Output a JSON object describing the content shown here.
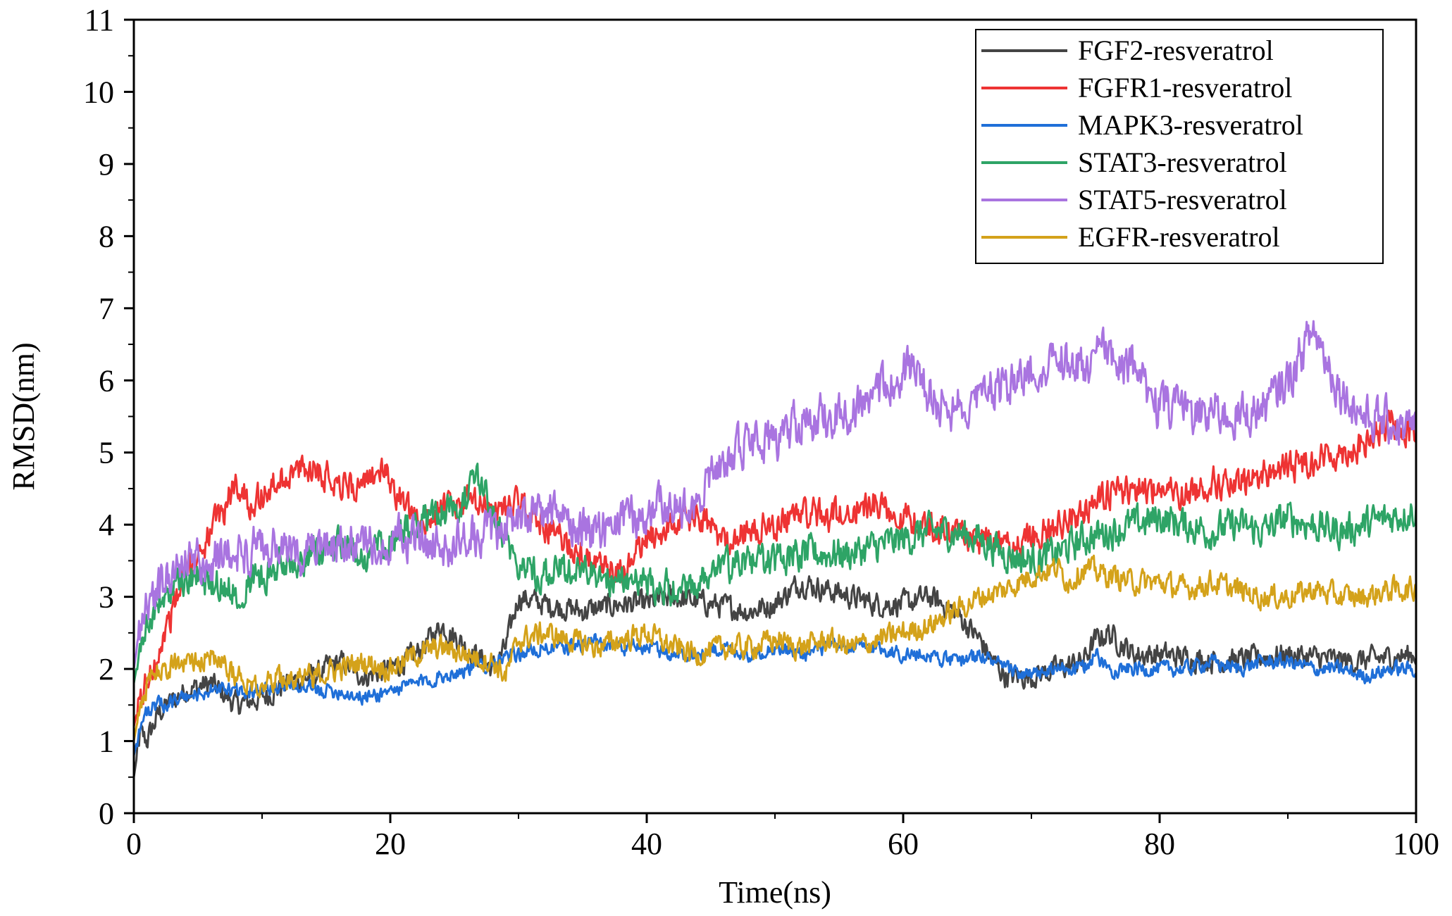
{
  "chart_data": {
    "type": "line",
    "title": "",
    "xlabel": "Time(ns)",
    "ylabel": "RMSD(nm)",
    "xlim": [
      0,
      100
    ],
    "ylim": [
      0,
      11
    ],
    "xticks": [
      0,
      20,
      40,
      60,
      80,
      100
    ],
    "yticks": [
      0,
      1,
      2,
      3,
      4,
      5,
      6,
      7,
      8,
      9,
      10,
      11
    ],
    "x_tick_labels": [
      "0",
      "20",
      "40",
      "60",
      "80",
      "100"
    ],
    "y_tick_labels": [
      "0",
      "1",
      "2",
      "3",
      "4",
      "5",
      "6",
      "7",
      "8",
      "9",
      "10",
      "11"
    ],
    "grid": false,
    "legend_position": "top-right",
    "series": [
      {
        "name": "FGF2-resveratrol",
        "color": "#444444",
        "x": [
          0,
          0.5,
          1,
          2,
          4,
          6,
          8,
          10,
          12,
          14,
          16,
          18,
          20,
          22,
          24,
          26,
          28,
          29,
          30,
          32,
          35,
          38,
          40,
          42,
          45,
          48,
          50,
          52,
          54,
          56,
          58,
          60,
          62,
          64,
          66,
          67,
          68,
          70,
          72,
          74,
          75,
          76,
          78,
          80,
          85,
          90,
          95,
          100
        ],
        "y": [
          0.5,
          1.1,
          1.0,
          1.4,
          1.7,
          1.8,
          1.5,
          1.6,
          1.8,
          1.9,
          2.1,
          1.9,
          2.0,
          2.2,
          2.6,
          2.3,
          2.0,
          2.3,
          3.0,
          2.9,
          2.8,
          2.9,
          2.9,
          3.0,
          2.9,
          2.8,
          2.9,
          3.2,
          3.1,
          3.0,
          2.9,
          2.9,
          3.0,
          2.8,
          2.4,
          2.1,
          1.9,
          1.9,
          2.0,
          2.1,
          2.4,
          2.5,
          2.2,
          2.2,
          2.1,
          2.2,
          2.1,
          2.2
        ]
      },
      {
        "name": "FGFR1-resveratrol",
        "color": "#ee3333",
        "x": [
          0,
          0.5,
          1,
          2,
          3,
          4,
          5,
          6,
          7,
          8,
          9,
          10,
          12,
          14,
          16,
          18,
          19,
          20,
          21,
          22,
          24,
          26,
          28,
          30,
          32,
          34,
          36,
          38,
          40,
          42,
          44,
          46,
          48,
          50,
          52,
          54,
          56,
          58,
          60,
          62,
          64,
          66,
          68,
          70,
          72,
          74,
          76,
          78,
          80,
          82,
          84,
          86,
          88,
          90,
          92,
          94,
          96,
          98,
          100
        ],
        "y": [
          1.2,
          1.6,
          1.8,
          2.3,
          2.8,
          3.3,
          3.6,
          3.9,
          4.2,
          4.6,
          4.3,
          4.4,
          4.7,
          4.8,
          4.6,
          4.5,
          4.8,
          4.6,
          4.3,
          4.0,
          4.2,
          4.3,
          4.2,
          4.3,
          4.0,
          3.7,
          3.4,
          3.3,
          3.8,
          4.0,
          4.1,
          3.8,
          3.9,
          4.0,
          4.2,
          4.1,
          4.2,
          4.3,
          4.1,
          4.0,
          3.9,
          3.8,
          3.7,
          3.8,
          4.0,
          4.2,
          4.4,
          4.5,
          4.5,
          4.4,
          4.6,
          4.5,
          4.7,
          4.8,
          4.9,
          5.0,
          5.1,
          5.4,
          5.3
        ]
      },
      {
        "name": "MAPK3-resveratrol",
        "color": "#1f6fd8",
        "x": [
          0,
          0.5,
          1,
          2,
          4,
          6,
          8,
          10,
          12,
          14,
          16,
          18,
          20,
          22,
          24,
          26,
          28,
          30,
          32,
          34,
          36,
          38,
          40,
          42,
          44,
          46,
          48,
          50,
          52,
          54,
          56,
          58,
          60,
          62,
          64,
          66,
          68,
          70,
          72,
          74,
          75,
          76,
          78,
          80,
          82,
          84,
          86,
          88,
          90,
          92,
          94,
          96,
          98,
          100
        ],
        "y": [
          0.8,
          1.2,
          1.4,
          1.5,
          1.6,
          1.7,
          1.7,
          1.7,
          1.8,
          1.7,
          1.7,
          1.6,
          1.7,
          1.8,
          1.9,
          2.0,
          2.1,
          2.2,
          2.3,
          2.3,
          2.4,
          2.3,
          2.3,
          2.2,
          2.2,
          2.3,
          2.2,
          2.3,
          2.2,
          2.3,
          2.3,
          2.3,
          2.2,
          2.2,
          2.1,
          2.2,
          2.0,
          1.9,
          2.0,
          2.0,
          2.2,
          2.0,
          2.0,
          2.0,
          2.0,
          2.1,
          2.0,
          2.1,
          2.1,
          2.0,
          2.0,
          1.9,
          2.0,
          2.0
        ]
      },
      {
        "name": "STAT3-resveratrol",
        "color": "#2ea466",
        "x": [
          0,
          0.5,
          1,
          2,
          3,
          4,
          6,
          8,
          10,
          12,
          14,
          16,
          18,
          20,
          22,
          24,
          26,
          27,
          28,
          29,
          30,
          32,
          34,
          36,
          38,
          40,
          42,
          44,
          46,
          48,
          50,
          52,
          54,
          56,
          58,
          60,
          62,
          64,
          66,
          68,
          70,
          72,
          74,
          76,
          78,
          80,
          82,
          84,
          86,
          88,
          90,
          92,
          94,
          96,
          98,
          100
        ],
        "y": [
          1.8,
          2.3,
          2.6,
          2.9,
          3.1,
          3.3,
          3.2,
          3.1,
          3.3,
          3.5,
          3.6,
          3.7,
          3.6,
          3.8,
          4.0,
          4.2,
          4.4,
          4.6,
          4.2,
          3.8,
          3.5,
          3.3,
          3.4,
          3.3,
          3.2,
          3.2,
          3.1,
          3.2,
          3.4,
          3.5,
          3.5,
          3.6,
          3.6,
          3.6,
          3.7,
          3.8,
          3.9,
          3.9,
          3.8,
          3.6,
          3.5,
          3.6,
          3.8,
          3.9,
          4.0,
          4.1,
          4.0,
          3.9,
          4.0,
          3.9,
          4.1,
          4.0,
          3.9,
          4.0,
          4.1,
          4.2
        ]
      },
      {
        "name": "STAT5-resveratrol",
        "color": "#a974e0",
        "x": [
          0,
          0.5,
          1,
          2,
          3,
          4,
          6,
          8,
          10,
          12,
          14,
          16,
          18,
          20,
          22,
          24,
          26,
          28,
          30,
          32,
          34,
          36,
          38,
          40,
          42,
          44,
          45,
          46,
          48,
          50,
          52,
          54,
          56,
          58,
          60,
          61,
          62,
          64,
          66,
          68,
          70,
          72,
          74,
          76,
          78,
          80,
          82,
          84,
          86,
          88,
          90,
          92,
          94,
          96,
          98,
          100
        ],
        "y": [
          2.0,
          2.6,
          2.9,
          3.1,
          3.4,
          3.5,
          3.5,
          3.6,
          3.7,
          3.6,
          3.6,
          3.7,
          3.7,
          3.8,
          3.8,
          3.7,
          3.8,
          3.9,
          4.1,
          4.2,
          4.0,
          3.9,
          4.0,
          4.2,
          4.3,
          4.1,
          4.8,
          4.9,
          5.1,
          5.2,
          5.4,
          5.5,
          5.6,
          5.8,
          6.1,
          6.3,
          5.8,
          5.6,
          5.9,
          5.9,
          6.1,
          6.3,
          6.2,
          6.4,
          6.2,
          5.6,
          5.6,
          5.6,
          5.5,
          5.6,
          6.0,
          6.7,
          5.9,
          5.5,
          5.4,
          5.3
        ]
      },
      {
        "name": "EGFR-resveratrol",
        "color": "#d4a21a",
        "x": [
          0,
          0.5,
          1,
          2,
          4,
          6,
          8,
          10,
          12,
          14,
          16,
          18,
          20,
          22,
          24,
          26,
          28,
          29,
          30,
          32,
          34,
          36,
          38,
          40,
          42,
          44,
          46,
          48,
          50,
          52,
          54,
          56,
          58,
          60,
          62,
          64,
          66,
          68,
          70,
          72,
          73,
          74,
          76,
          78,
          80,
          82,
          84,
          86,
          88,
          90,
          92,
          94,
          96,
          98,
          100
        ],
        "y": [
          1.0,
          1.5,
          1.8,
          2.0,
          2.1,
          2.2,
          1.9,
          1.8,
          1.9,
          1.9,
          2.0,
          2.1,
          2.0,
          2.2,
          2.3,
          2.2,
          2.1,
          1.9,
          2.4,
          2.5,
          2.4,
          2.3,
          2.4,
          2.5,
          2.3,
          2.2,
          2.3,
          2.3,
          2.4,
          2.3,
          2.4,
          2.3,
          2.4,
          2.5,
          2.6,
          2.8,
          3.0,
          3.1,
          3.3,
          3.4,
          3.2,
          3.4,
          3.3,
          3.2,
          3.2,
          3.1,
          3.2,
          3.1,
          3.0,
          3.0,
          3.1,
          3.0,
          3.0,
          3.1,
          3.1
        ]
      }
    ]
  }
}
